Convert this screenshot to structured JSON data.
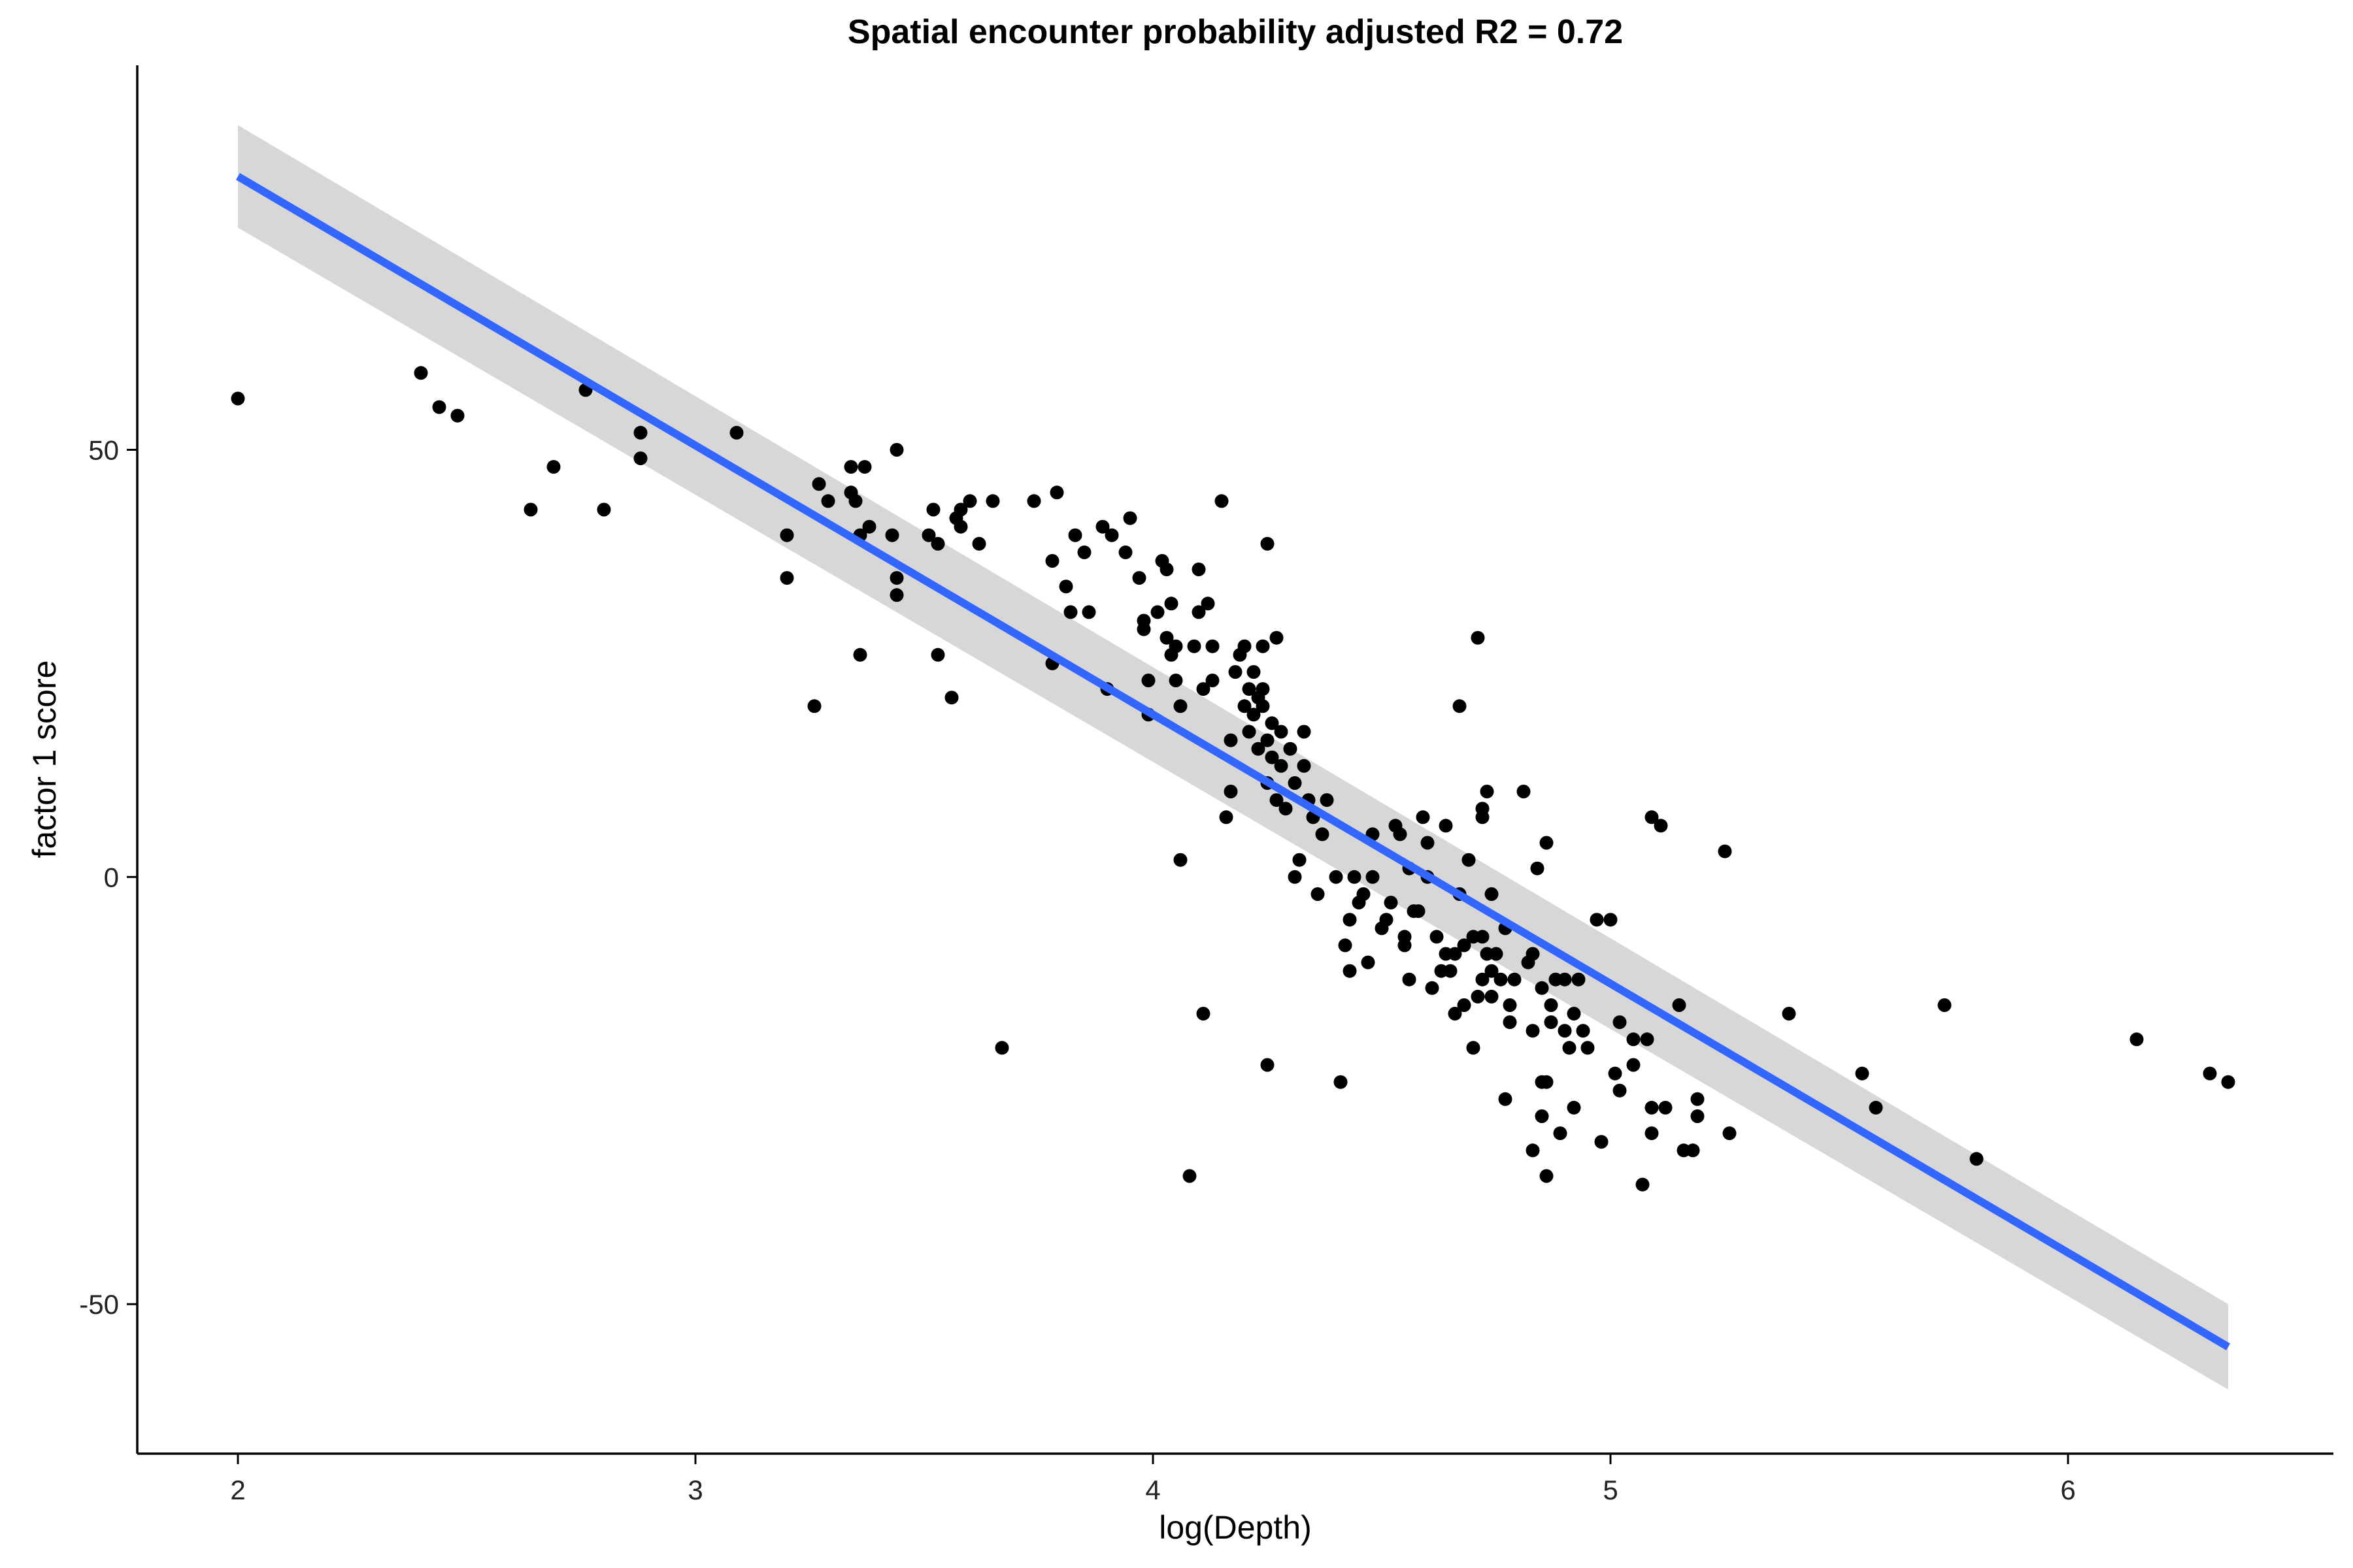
{
  "chart_data": {
    "type": "scatter",
    "title": "Spatial encounter probability adjusted R2 = 0.72",
    "xlabel": "log(Depth)",
    "ylabel": "factor 1 score",
    "xlim": [
      1.78,
      6.58
    ],
    "ylim": [
      -67.5,
      95
    ],
    "x_ticks": [
      2,
      3,
      4,
      5,
      6
    ],
    "x_tick_labels": [
      "2",
      "3",
      "4",
      "5",
      "6"
    ],
    "y_ticks": [
      -50,
      0,
      50
    ],
    "y_tick_labels": [
      "-50",
      "0",
      "50"
    ],
    "grid": false,
    "legend": "none",
    "colors": {
      "points": "#000000",
      "fit_line": "#3366ff",
      "confidence_band": "#d3d3d3"
    },
    "fit": {
      "method": "linear",
      "line": {
        "x": [
          2.0,
          6.35
        ],
        "y": [
          82,
          -55
        ]
      },
      "band": {
        "x": [
          2.0,
          6.35
        ],
        "upper": [
          88,
          -50
        ],
        "lower": [
          76,
          -60
        ]
      }
    },
    "points": [
      [
        2.0,
        56
      ],
      [
        2.4,
        59
      ],
      [
        2.44,
        55
      ],
      [
        2.48,
        54
      ],
      [
        2.64,
        43
      ],
      [
        2.69,
        48
      ],
      [
        2.76,
        57
      ],
      [
        2.8,
        43
      ],
      [
        2.88,
        49
      ],
      [
        2.88,
        52
      ],
      [
        3.09,
        52
      ],
      [
        3.2,
        35
      ],
      [
        3.2,
        40
      ],
      [
        3.26,
        20
      ],
      [
        3.27,
        46
      ],
      [
        3.29,
        44
      ],
      [
        3.34,
        48
      ],
      [
        3.34,
        45
      ],
      [
        3.35,
        44
      ],
      [
        3.36,
        26
      ],
      [
        3.36,
        40
      ],
      [
        3.37,
        48
      ],
      [
        3.38,
        41
      ],
      [
        3.43,
        40
      ],
      [
        3.44,
        50
      ],
      [
        3.44,
        33
      ],
      [
        3.44,
        35
      ],
      [
        3.51,
        40
      ],
      [
        3.52,
        43
      ],
      [
        3.53,
        26
      ],
      [
        3.53,
        39
      ],
      [
        3.56,
        21
      ],
      [
        3.57,
        42
      ],
      [
        3.58,
        43
      ],
      [
        3.58,
        41
      ],
      [
        3.6,
        44
      ],
      [
        3.62,
        39
      ],
      [
        3.65,
        44
      ],
      [
        3.67,
        -20
      ],
      [
        3.74,
        44
      ],
      [
        3.78,
        25
      ],
      [
        3.78,
        37
      ],
      [
        3.79,
        45
      ],
      [
        3.81,
        34
      ],
      [
        3.82,
        31
      ],
      [
        3.83,
        40
      ],
      [
        3.85,
        38
      ],
      [
        3.86,
        31
      ],
      [
        3.89,
        41
      ],
      [
        3.9,
        22
      ],
      [
        3.91,
        40
      ],
      [
        3.94,
        38
      ],
      [
        3.95,
        42
      ],
      [
        3.97,
        35
      ],
      [
        3.98,
        30
      ],
      [
        3.98,
        29
      ],
      [
        3.99,
        23
      ],
      [
        3.99,
        19
      ],
      [
        4.01,
        31
      ],
      [
        4.02,
        37
      ],
      [
        4.03,
        36
      ],
      [
        4.03,
        28
      ],
      [
        4.04,
        32
      ],
      [
        4.04,
        26
      ],
      [
        4.05,
        27
      ],
      [
        4.05,
        23
      ],
      [
        4.06,
        2
      ],
      [
        4.06,
        20
      ],
      [
        4.08,
        -35
      ],
      [
        4.09,
        27
      ],
      [
        4.1,
        36
      ],
      [
        4.1,
        31
      ],
      [
        4.11,
        22
      ],
      [
        4.11,
        -16
      ],
      [
        4.12,
        32
      ],
      [
        4.13,
        27
      ],
      [
        4.13,
        23
      ],
      [
        4.15,
        44
      ],
      [
        4.16,
        7
      ],
      [
        4.17,
        10
      ],
      [
        4.17,
        16
      ],
      [
        4.18,
        24
      ],
      [
        4.19,
        26
      ],
      [
        4.2,
        20
      ],
      [
        4.2,
        27
      ],
      [
        4.21,
        22
      ],
      [
        4.21,
        17
      ],
      [
        4.22,
        24
      ],
      [
        4.22,
        19
      ],
      [
        4.23,
        21
      ],
      [
        4.23,
        15
      ],
      [
        4.24,
        27
      ],
      [
        4.24,
        22
      ],
      [
        4.24,
        20
      ],
      [
        4.25,
        39
      ],
      [
        4.25,
        16
      ],
      [
        4.25,
        11
      ],
      [
        4.25,
        -22
      ],
      [
        4.26,
        18
      ],
      [
        4.26,
        14
      ],
      [
        4.27,
        28
      ],
      [
        4.27,
        9
      ],
      [
        4.28,
        17
      ],
      [
        4.28,
        13
      ],
      [
        4.29,
        8
      ],
      [
        4.3,
        15
      ],
      [
        4.31,
        11
      ],
      [
        4.31,
        0
      ],
      [
        4.32,
        2
      ],
      [
        4.33,
        17
      ],
      [
        4.33,
        13
      ],
      [
        4.34,
        9
      ],
      [
        4.35,
        7
      ],
      [
        4.36,
        -2
      ],
      [
        4.37,
        5
      ],
      [
        4.38,
        9
      ],
      [
        4.4,
        0
      ],
      [
        4.41,
        -24
      ],
      [
        4.42,
        -8
      ],
      [
        4.43,
        -11
      ],
      [
        4.43,
        -5
      ],
      [
        4.44,
        0
      ],
      [
        4.45,
        -3
      ],
      [
        4.46,
        -2
      ],
      [
        4.47,
        -10
      ],
      [
        4.48,
        5
      ],
      [
        4.48,
        0
      ],
      [
        4.5,
        -6
      ],
      [
        4.51,
        -5
      ],
      [
        4.52,
        -3
      ],
      [
        4.53,
        6
      ],
      [
        4.54,
        5
      ],
      [
        4.55,
        -7
      ],
      [
        4.55,
        -8
      ],
      [
        4.56,
        1
      ],
      [
        4.56,
        -12
      ],
      [
        4.57,
        -4
      ],
      [
        4.58,
        -4
      ],
      [
        4.59,
        7
      ],
      [
        4.6,
        4
      ],
      [
        4.6,
        0
      ],
      [
        4.61,
        -13
      ],
      [
        4.62,
        -7
      ],
      [
        4.63,
        -11
      ],
      [
        4.64,
        6
      ],
      [
        4.64,
        -9
      ],
      [
        4.65,
        -11
      ],
      [
        4.66,
        -16
      ],
      [
        4.66,
        -9
      ],
      [
        4.67,
        20
      ],
      [
        4.67,
        -2
      ],
      [
        4.68,
        -15
      ],
      [
        4.68,
        -8
      ],
      [
        4.69,
        2
      ],
      [
        4.7,
        -20
      ],
      [
        4.7,
        -7
      ],
      [
        4.71,
        28
      ],
      [
        4.71,
        -14
      ],
      [
        4.72,
        8
      ],
      [
        4.72,
        7
      ],
      [
        4.72,
        -7
      ],
      [
        4.72,
        -12
      ],
      [
        4.73,
        10
      ],
      [
        4.73,
        -9
      ],
      [
        4.74,
        -14
      ],
      [
        4.74,
        -11
      ],
      [
        4.74,
        -2
      ],
      [
        4.75,
        -9
      ],
      [
        4.76,
        -12
      ],
      [
        4.77,
        -6
      ],
      [
        4.77,
        -26
      ],
      [
        4.78,
        -15
      ],
      [
        4.78,
        -17
      ],
      [
        4.79,
        -12
      ],
      [
        4.81,
        10
      ],
      [
        4.82,
        -10
      ],
      [
        4.83,
        -32
      ],
      [
        4.83,
        -18
      ],
      [
        4.83,
        -9
      ],
      [
        4.84,
        1
      ],
      [
        4.85,
        -13
      ],
      [
        4.85,
        -24
      ],
      [
        4.85,
        -28
      ],
      [
        4.86,
        4
      ],
      [
        4.86,
        -35
      ],
      [
        4.86,
        -24
      ],
      [
        4.87,
        -17
      ],
      [
        4.87,
        -15
      ],
      [
        4.88,
        -12
      ],
      [
        4.89,
        -30
      ],
      [
        4.9,
        -12
      ],
      [
        4.9,
        -18
      ],
      [
        4.91,
        -20
      ],
      [
        4.92,
        -16
      ],
      [
        4.92,
        -27
      ],
      [
        4.93,
        -12
      ],
      [
        4.94,
        -18
      ],
      [
        4.95,
        -20
      ],
      [
        4.97,
        -5
      ],
      [
        4.98,
        -31
      ],
      [
        5.0,
        -5
      ],
      [
        5.01,
        -23
      ],
      [
        5.02,
        -17
      ],
      [
        5.02,
        -25
      ],
      [
        5.05,
        -22
      ],
      [
        5.05,
        -19
      ],
      [
        5.07,
        -36
      ],
      [
        5.08,
        -19
      ],
      [
        5.09,
        7
      ],
      [
        5.09,
        -27
      ],
      [
        5.09,
        -30
      ],
      [
        5.11,
        6
      ],
      [
        5.12,
        -27
      ],
      [
        5.15,
        -15
      ],
      [
        5.16,
        -32
      ],
      [
        5.18,
        -32
      ],
      [
        5.19,
        -26
      ],
      [
        5.19,
        -28
      ],
      [
        5.25,
        3
      ],
      [
        5.26,
        -30
      ],
      [
        5.39,
        -16
      ],
      [
        5.55,
        -23
      ],
      [
        5.58,
        -27
      ],
      [
        5.73,
        -15
      ],
      [
        5.8,
        -33
      ],
      [
        6.15,
        -19
      ],
      [
        6.31,
        -23
      ],
      [
        6.35,
        -24
      ]
    ]
  }
}
